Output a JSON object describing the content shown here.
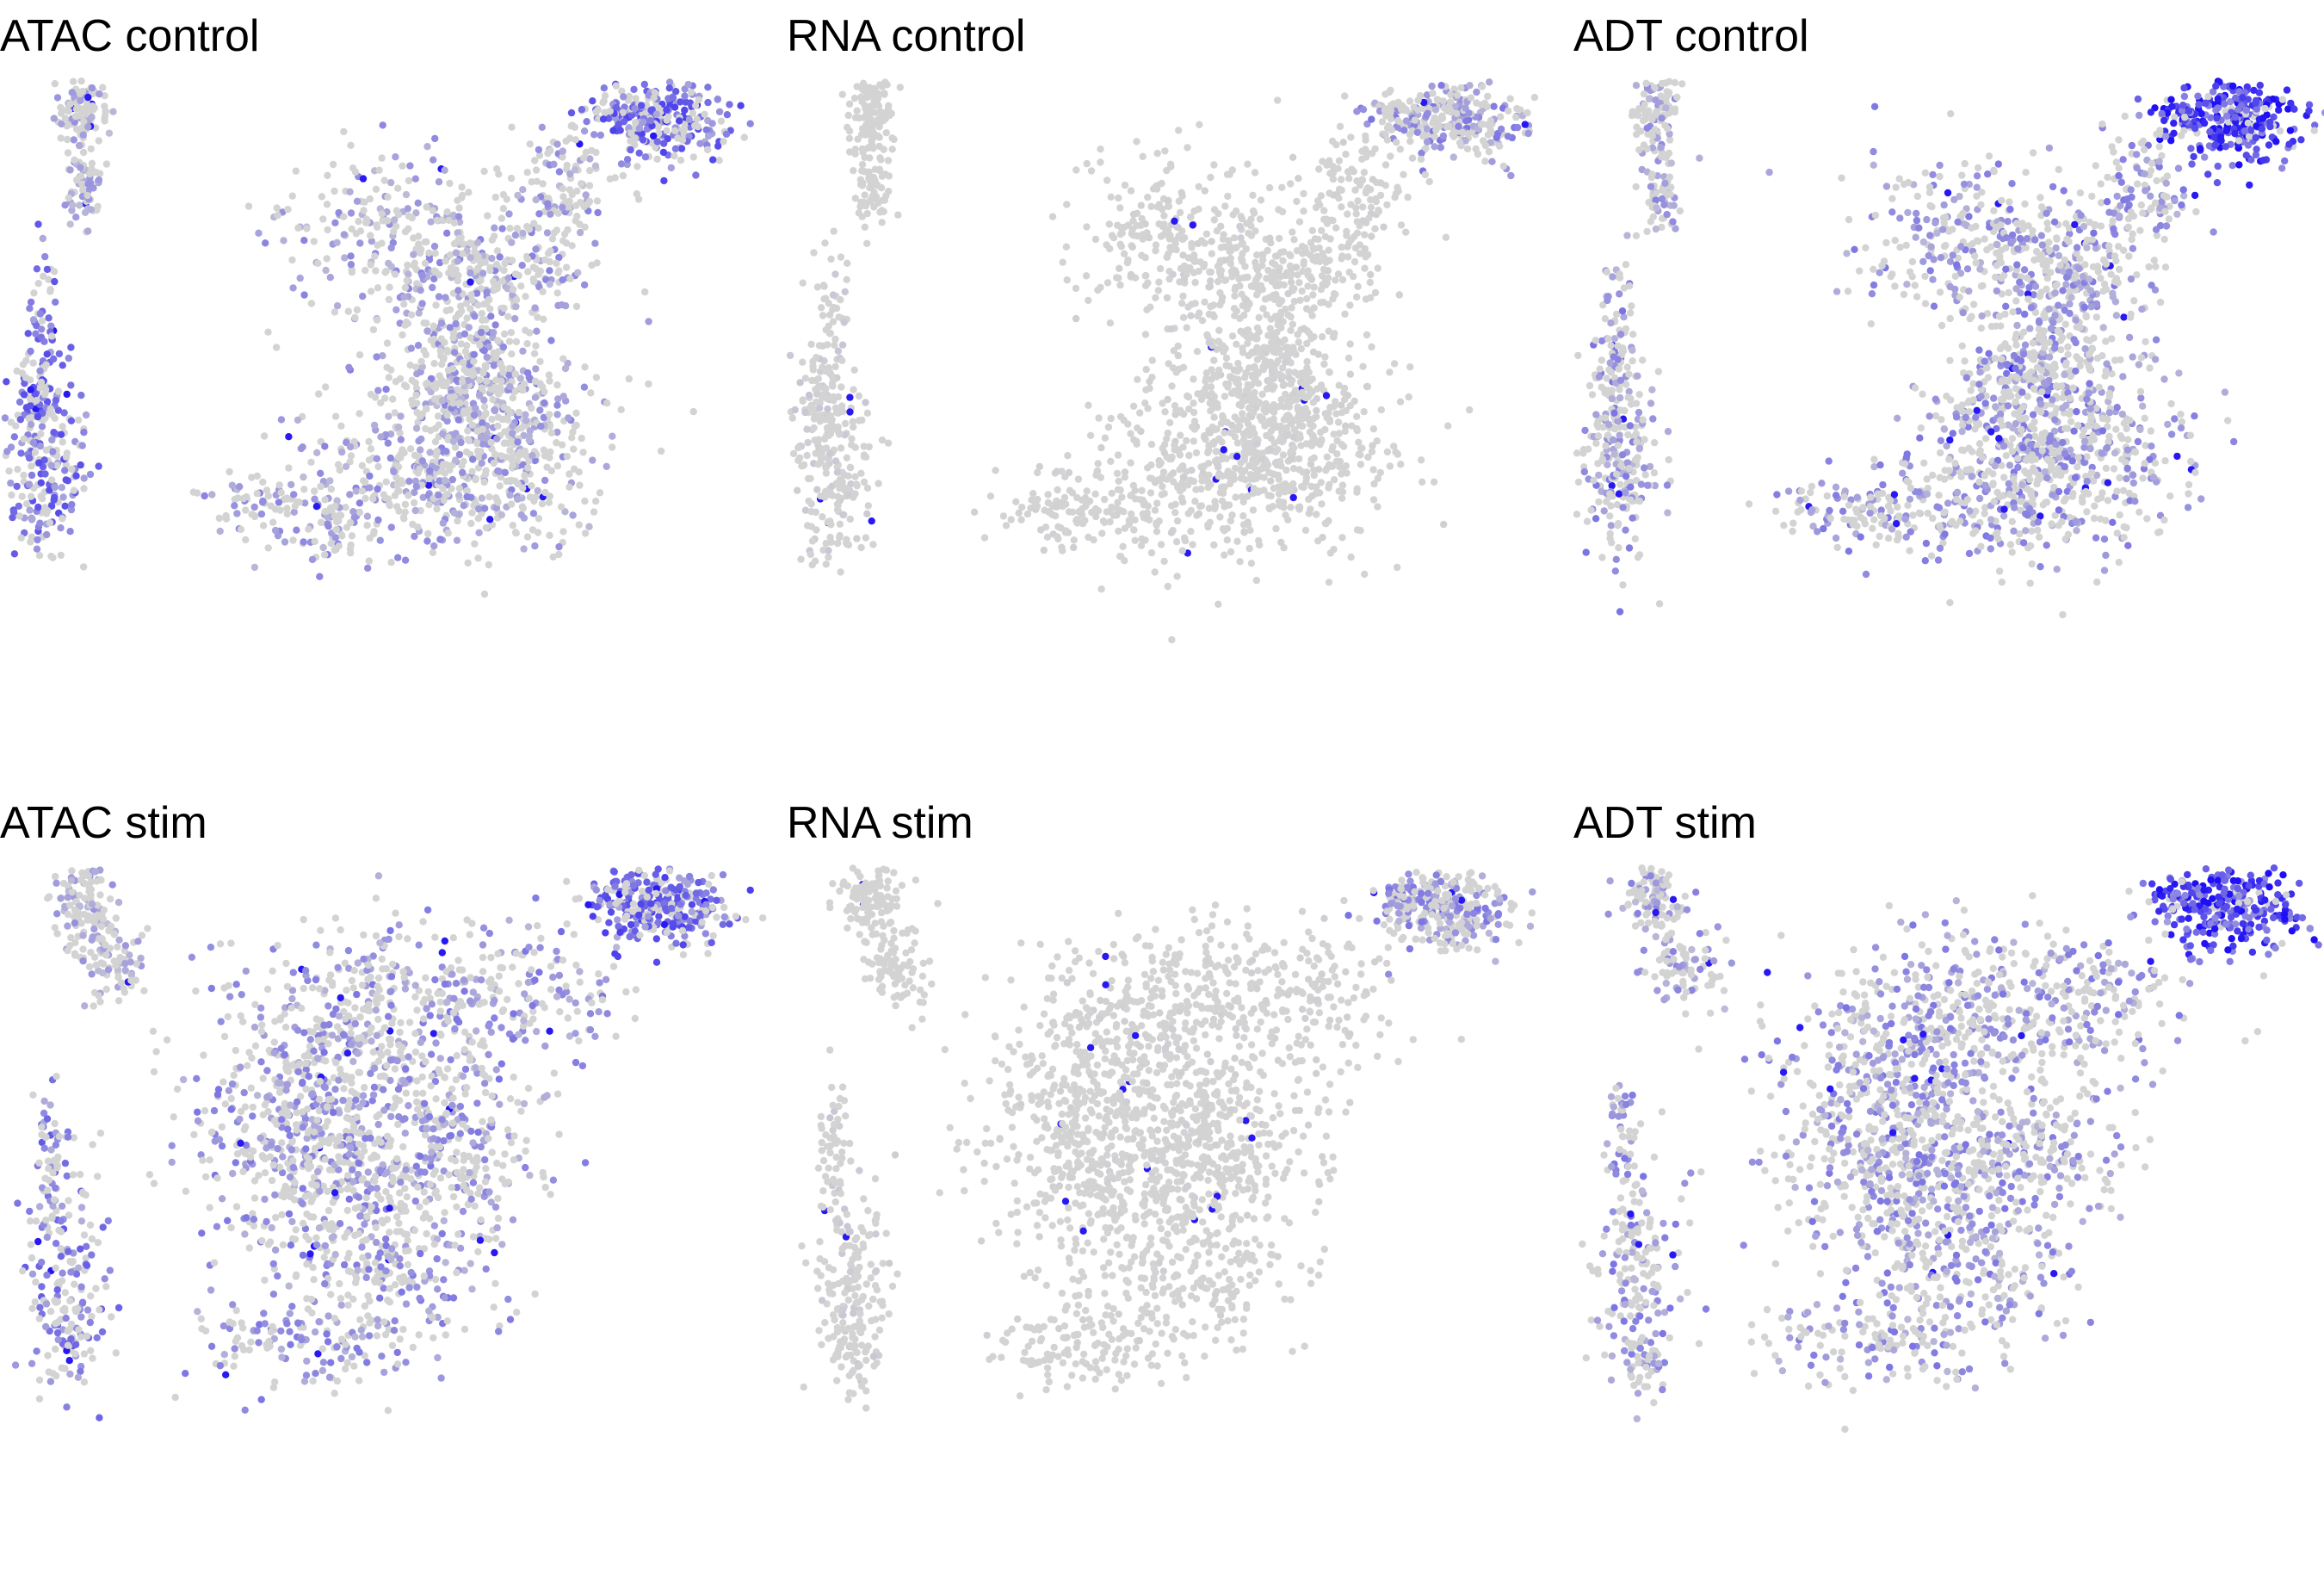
{
  "chart_data": [
    {
      "type": "scatter",
      "title": "ATAC control",
      "modality": "ATAC",
      "condition": "control",
      "x_axis": "hidden",
      "y_axis": "hidden",
      "grid": false,
      "legend": "none",
      "color_low": "#d3d3d3",
      "color_high": "#1f0ff5",
      "intensity_level": 0.35,
      "emphasis_clusters": [
        "top-right",
        "left-bottom",
        "middle-chain"
      ]
    },
    {
      "type": "scatter",
      "title": "RNA control",
      "modality": "RNA",
      "condition": "control",
      "x_axis": "hidden",
      "y_axis": "hidden",
      "grid": false,
      "legend": "none",
      "color_low": "#d3d3d3",
      "color_high": "#1f0ff5",
      "intensity_level": 0.08,
      "emphasis_clusters": [
        "top-right"
      ]
    },
    {
      "type": "scatter",
      "title": "ADT control",
      "modality": "ADT",
      "condition": "control",
      "x_axis": "hidden",
      "y_axis": "hidden",
      "grid": false,
      "legend": "none",
      "color_low": "#d3d3d3",
      "color_high": "#1f0ff5",
      "intensity_level": 0.45,
      "emphasis_clusters": [
        "top-right",
        "middle-chain"
      ]
    },
    {
      "type": "scatter",
      "title": "ATAC stim",
      "modality": "ATAC",
      "condition": "stim",
      "x_axis": "hidden",
      "y_axis": "hidden",
      "grid": false,
      "legend": "none",
      "color_low": "#d3d3d3",
      "color_high": "#1f0ff5",
      "intensity_level": 0.3,
      "emphasis_clusters": [
        "top-right",
        "left-bottom",
        "middle-chain"
      ]
    },
    {
      "type": "scatter",
      "title": "RNA stim",
      "modality": "RNA",
      "condition": "stim",
      "x_axis": "hidden",
      "y_axis": "hidden",
      "grid": false,
      "legend": "none",
      "color_low": "#d3d3d3",
      "color_high": "#1f0ff5",
      "intensity_level": 0.06,
      "emphasis_clusters": [
        "top-right"
      ]
    },
    {
      "type": "scatter",
      "title": "ADT stim",
      "modality": "ADT",
      "condition": "stim",
      "x_axis": "hidden",
      "y_axis": "hidden",
      "grid": false,
      "legend": "none",
      "color_low": "#d3d3d3",
      "color_high": "#1f0ff5",
      "intensity_level": 0.42,
      "emphasis_clusters": [
        "top-right",
        "middle-chain"
      ]
    }
  ]
}
